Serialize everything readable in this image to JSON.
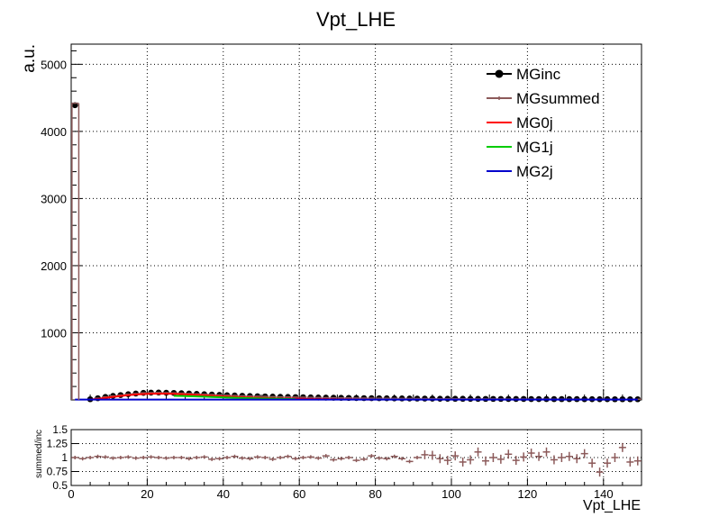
{
  "chart_data": {
    "type": "line",
    "title": "Vpt_LHE",
    "main": {
      "ylabel": "a.u.",
      "xlim": [
        0,
        150
      ],
      "ylim": [
        0,
        5300
      ],
      "yticks": [
        1000,
        2000,
        3000,
        4000,
        5000
      ],
      "grid": true,
      "legend_position": "top-right",
      "series": [
        {
          "name": "MGinc",
          "color": "#000000",
          "marker": "circle",
          "x": [
            1,
            5,
            7,
            9,
            11,
            13,
            15,
            17,
            19,
            21,
            23,
            25,
            27,
            29,
            31,
            33,
            35,
            37,
            39,
            41,
            43,
            45,
            47,
            49,
            51,
            53,
            55,
            57,
            59,
            61,
            63,
            65,
            67,
            69,
            71,
            73,
            75,
            77,
            79,
            81,
            83,
            85,
            87,
            89,
            91,
            93,
            95,
            97,
            99,
            101,
            103,
            105,
            107,
            109,
            111,
            113,
            115,
            117,
            119,
            121,
            123,
            125,
            127,
            129,
            131,
            133,
            135,
            137,
            139,
            141,
            143,
            145,
            147,
            149
          ],
          "y": [
            4390,
            10,
            25,
            45,
            60,
            72,
            85,
            95,
            105,
            108,
            110,
            107,
            104,
            100,
            95,
            90,
            85,
            80,
            75,
            70,
            66,
            62,
            58,
            55,
            52,
            49,
            46,
            44,
            42,
            40,
            38,
            36,
            34,
            33,
            31,
            30,
            28,
            27,
            26,
            25,
            24,
            23,
            22,
            21,
            20,
            20,
            19,
            18,
            18,
            17,
            17,
            16,
            16,
            15,
            15,
            15,
            14,
            14,
            14,
            13,
            13,
            13,
            12,
            12,
            12,
            12,
            11,
            11,
            11,
            11,
            10,
            10,
            10,
            10
          ]
        },
        {
          "name": "MGsummed",
          "color": "#8c5a5a",
          "marker": "cross",
          "x": [
            1,
            5,
            7,
            9,
            11,
            13,
            15,
            17,
            19,
            21,
            23,
            25,
            27,
            29,
            31,
            33,
            35,
            37,
            39,
            41,
            43,
            45,
            47,
            49,
            51,
            53,
            55,
            57,
            59,
            61,
            63,
            65,
            67,
            69,
            71,
            73,
            75,
            77,
            79,
            81,
            83,
            85,
            87,
            89,
            91,
            93,
            95,
            97,
            99,
            101,
            103,
            105,
            107,
            109,
            111,
            113,
            115,
            117,
            119,
            121,
            123,
            125,
            127,
            129,
            131,
            133,
            135,
            137,
            139,
            141,
            143,
            145,
            147,
            149
          ],
          "y": [
            4420,
            10,
            25,
            45,
            60,
            72,
            85,
            95,
            105,
            108,
            110,
            107,
            104,
            100,
            95,
            90,
            85,
            80,
            75,
            70,
            66,
            62,
            58,
            55,
            52,
            49,
            46,
            44,
            42,
            40,
            38,
            36,
            34,
            33,
            31,
            30,
            28,
            27,
            26,
            25,
            24,
            23,
            22,
            21,
            20,
            20,
            19,
            18,
            18,
            17,
            17,
            16,
            16,
            15,
            15,
            15,
            14,
            14,
            14,
            13,
            13,
            13,
            12,
            12,
            12,
            12,
            11,
            11,
            11,
            11,
            10,
            10,
            10,
            10
          ]
        },
        {
          "name": "MG0j",
          "color": "#ff0000",
          "marker": "none",
          "x": [
            5,
            7,
            9,
            11,
            13,
            15,
            17,
            19,
            21,
            23,
            25,
            27,
            29,
            31,
            33,
            35,
            37,
            39,
            41,
            43,
            45,
            47,
            49,
            51,
            53,
            55,
            57,
            59,
            61,
            63,
            65,
            67,
            69,
            71,
            73,
            75,
            77,
            79
          ],
          "y": [
            5,
            15,
            30,
            45,
            58,
            70,
            80,
            88,
            92,
            94,
            93,
            90,
            86,
            80,
            74,
            68,
            62,
            56,
            50,
            45,
            40,
            36,
            32,
            28,
            25,
            22,
            20,
            18,
            16,
            14,
            12,
            11,
            10,
            9,
            8,
            7,
            6,
            5
          ]
        },
        {
          "name": "MG1j",
          "color": "#00cc00",
          "marker": "none",
          "x": [
            27,
            29,
            31,
            33,
            35,
            37,
            39,
            41,
            43,
            45,
            47,
            49,
            51,
            53,
            55,
            57,
            59
          ],
          "y": [
            60,
            58,
            55,
            52,
            48,
            44,
            40,
            36,
            32,
            28,
            25,
            22,
            20,
            18,
            16,
            14,
            12
          ]
        },
        {
          "name": "MG2j",
          "color": "#0000cc",
          "marker": "none",
          "x": [
            1,
            149
          ],
          "y": [
            5,
            5
          ]
        }
      ]
    },
    "ratio": {
      "ylabel": "summed/inc",
      "xlabel": "Vpt_LHE",
      "ylim": [
        0.5,
        1.5
      ],
      "yticks": [
        "0.5",
        "0.75",
        "1",
        "1.25",
        "1.5"
      ],
      "xticks": [
        "0",
        "20",
        "40",
        "60",
        "80",
        "100",
        "120",
        "140"
      ],
      "grid": true,
      "color": "#8c5a5a",
      "x": [
        1,
        3,
        5,
        7,
        9,
        11,
        13,
        15,
        17,
        19,
        21,
        23,
        25,
        27,
        29,
        31,
        33,
        35,
        37,
        39,
        41,
        43,
        45,
        47,
        49,
        51,
        53,
        55,
        57,
        59,
        61,
        63,
        65,
        67,
        69,
        71,
        73,
        75,
        77,
        79,
        81,
        83,
        85,
        87,
        89,
        91,
        93,
        95,
        97,
        99,
        101,
        103,
        105,
        107,
        109,
        111,
        113,
        115,
        117,
        119,
        121,
        123,
        125,
        127,
        129,
        131,
        133,
        135,
        137,
        139,
        141,
        143,
        145,
        147,
        149
      ],
      "y": [
        1.0,
        0.98,
        1.0,
        1.02,
        1.01,
        0.99,
        1.0,
        1.01,
        0.99,
        1.0,
        1.01,
        1.0,
        0.99,
        1.0,
        1.0,
        0.98,
        1.0,
        1.01,
        0.97,
        0.98,
        1.0,
        1.02,
        0.99,
        0.98,
        1.01,
        1.0,
        0.97,
        1.0,
        1.02,
        0.98,
        1.0,
        1.01,
        0.99,
        1.03,
        0.96,
        0.98,
        1.0,
        0.95,
        0.97,
        1.03,
        0.99,
        0.98,
        1.02,
        0.98,
        0.93,
        1.0,
        1.05,
        1.04,
        0.98,
        0.95,
        1.03,
        0.92,
        0.96,
        1.1,
        0.94,
        1.0,
        0.97,
        1.06,
        0.95,
        1.01,
        1.08,
        1.02,
        1.1,
        0.96,
        1.0,
        1.02,
        0.98,
        1.07,
        0.9,
        0.74,
        0.9,
        1.0,
        1.18,
        0.92,
        0.94
      ]
    }
  }
}
